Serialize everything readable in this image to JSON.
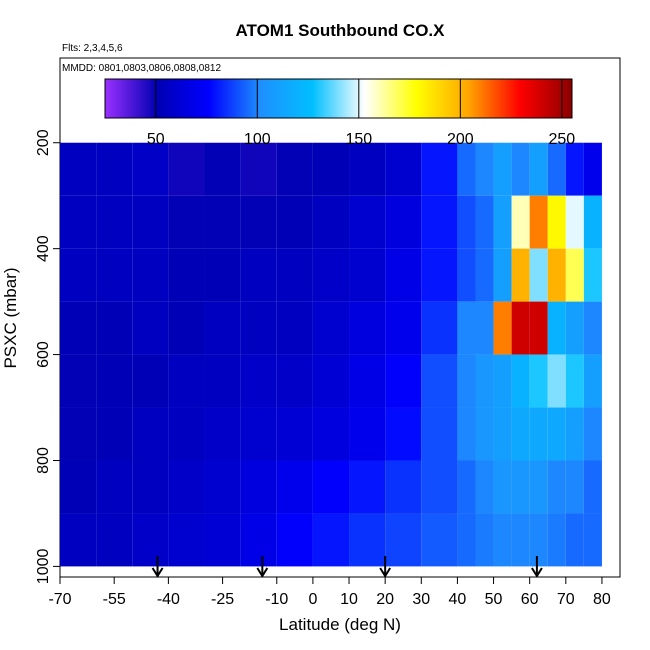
{
  "chart_data": {
    "type": "heatmap",
    "title": "ATOM1 Southbound CO.X",
    "flights_note": "Flts: 2,3,4,5,6",
    "dates_note": "MMDD: 0801,0803,0806,0808,0812",
    "xlabel": "Latitude (deg N)",
    "ylabel": "PSXC (mbar)",
    "xlim": [
      -70,
      85
    ],
    "ylim": [
      1020,
      40
    ],
    "x_ticks": [
      -70,
      -55,
      -40,
      -25,
      -10,
      0,
      10,
      20,
      30,
      40,
      50,
      60,
      70,
      80
    ],
    "x_tick_labels": [
      "-70",
      "-55",
      "-40",
      "-25",
      "-10",
      "0",
      "10",
      "20",
      "30",
      "40",
      "50",
      "60",
      "70",
      "80"
    ],
    "y_ticks": [
      200,
      400,
      600,
      800,
      1000
    ],
    "y_tick_labels": [
      "200",
      "400",
      "600",
      "800",
      "1000"
    ],
    "colorbar": {
      "min": 25,
      "max": 255,
      "ticks": [
        50,
        100,
        150,
        200,
        250
      ],
      "tick_labels": [
        "50",
        "100",
        "150",
        "200",
        "250"
      ],
      "colors": [
        "#9b30ff",
        "#0000b3",
        "#0000ff",
        "#1e90ff",
        "#00bfff",
        "#ffffff",
        "#ffff00",
        "#ffa500",
        "#ff0000",
        "#8b0000"
      ]
    },
    "profile_arrows_lat": [
      -43,
      -14,
      20,
      62
    ],
    "approx_field": {
      "lat_edges": [
        -70,
        -60,
        -50,
        -40,
        -30,
        -20,
        -10,
        0,
        10,
        20,
        30,
        40,
        45,
        50,
        55,
        60,
        65,
        70,
        75,
        80
      ],
      "pressure_edges": [
        200,
        300,
        400,
        500,
        600,
        700,
        800,
        900,
        1000
      ],
      "co_ppbv": [
        [
          55,
          55,
          57,
          48,
          50,
          48,
          50,
          52,
          55,
          60,
          80,
          95,
          100,
          110,
          100,
          110,
          95,
          80,
          70
        ],
        [
          55,
          55,
          55,
          50,
          50,
          50,
          52,
          55,
          60,
          65,
          80,
          90,
          95,
          110,
          160,
          210,
          180,
          150,
          120
        ],
        [
          55,
          55,
          55,
          52,
          52,
          55,
          55,
          58,
          60,
          68,
          80,
          90,
          95,
          110,
          200,
          140,
          200,
          170,
          130
        ],
        [
          52,
          52,
          55,
          52,
          55,
          55,
          55,
          60,
          65,
          70,
          85,
          100,
          100,
          210,
          240,
          240,
          120,
          110,
          100
        ],
        [
          50,
          52,
          52,
          55,
          55,
          58,
          58,
          62,
          68,
          75,
          90,
          100,
          105,
          110,
          120,
          130,
          140,
          130,
          110
        ],
        [
          50,
          52,
          55,
          55,
          58,
          60,
          62,
          65,
          70,
          78,
          90,
          100,
          105,
          110,
          115,
          115,
          115,
          110,
          100
        ],
        [
          52,
          55,
          55,
          58,
          60,
          65,
          70,
          75,
          80,
          85,
          90,
          95,
          100,
          105,
          105,
          105,
          100,
          100,
          95
        ],
        [
          55,
          55,
          58,
          60,
          62,
          68,
          75,
          80,
          85,
          88,
          92,
          95,
          98,
          100,
          100,
          100,
          98,
          95,
          95
        ]
      ]
    }
  }
}
